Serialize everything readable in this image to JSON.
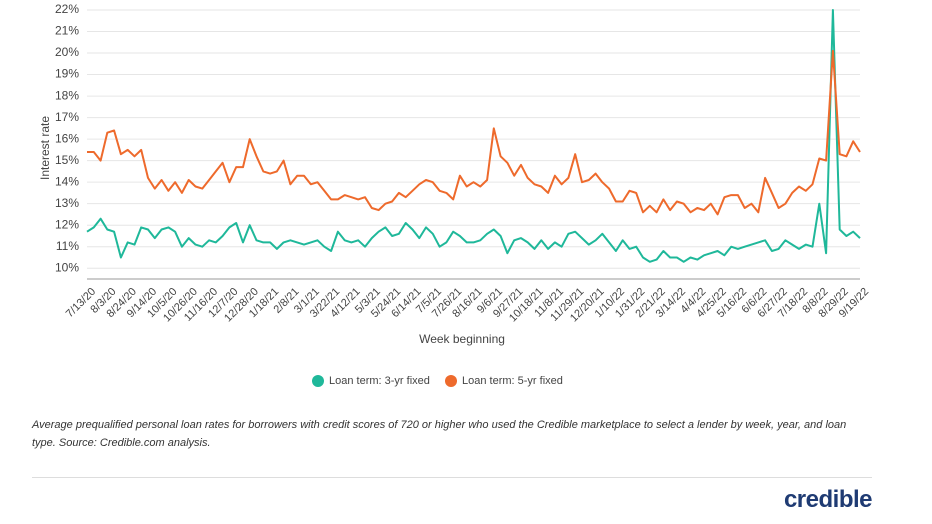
{
  "chart_data": {
    "type": "line",
    "y_label": "Interest rate",
    "x_label": "Week beginning",
    "caption": "Average prequalified personal loan rates for borrowers with credit scores of 720 or higher who used the Credible marketplace to select a lender by week, year, and loan type. Source: Credible.com analysis.",
    "logo": "credible",
    "grid": true,
    "ylim": [
      9.5,
      22
    ],
    "yticks": [
      {
        "value": 10,
        "label": "10%"
      },
      {
        "value": 11,
        "label": "11%"
      },
      {
        "value": 12,
        "label": "12%"
      },
      {
        "value": 13,
        "label": "13%"
      },
      {
        "value": 14,
        "label": "14%"
      },
      {
        "value": 15,
        "label": "15%"
      },
      {
        "value": 16,
        "label": "16%"
      },
      {
        "value": 17,
        "label": "17%"
      },
      {
        "value": 18,
        "label": "18%"
      },
      {
        "value": 19,
        "label": "19%"
      },
      {
        "value": 20,
        "label": "20%"
      },
      {
        "value": 21,
        "label": "21%"
      },
      {
        "value": 22,
        "label": "22%"
      }
    ],
    "categories": [
      "7/13/20",
      null,
      null,
      "8/3/20",
      null,
      null,
      "8/24/20",
      null,
      null,
      "9/14/20",
      null,
      null,
      "10/5/20",
      null,
      null,
      "10/26/20",
      null,
      null,
      "11/16/20",
      null,
      null,
      "12/7/20",
      null,
      null,
      "12/28/20",
      null,
      null,
      "1/18/21",
      null,
      null,
      "2/8/21",
      null,
      null,
      "3/1/21",
      null,
      null,
      "3/22/21",
      null,
      null,
      "4/12/21",
      null,
      null,
      "5/3/21",
      null,
      null,
      "5/24/21",
      null,
      null,
      "6/14/21",
      null,
      null,
      "7/5/21",
      null,
      null,
      "7/26/21",
      null,
      null,
      "8/16/21",
      null,
      null,
      "9/6/21",
      null,
      null,
      "9/27/21",
      null,
      null,
      "10/18/21",
      null,
      null,
      "11/8/21",
      null,
      null,
      "11/29/21",
      null,
      null,
      "12/20/21",
      null,
      null,
      "1/10/22",
      null,
      null,
      "1/31/22",
      null,
      null,
      "2/21/22",
      null,
      null,
      "3/14/22",
      null,
      null,
      "4/4/22",
      null,
      null,
      "4/25/22",
      null,
      null,
      "5/16/22",
      null,
      null,
      "6/6/22",
      null,
      null,
      "6/27/22",
      null,
      null,
      "7/18/22",
      null,
      null,
      "8/8/22",
      null,
      null,
      "8/29/22",
      null,
      null,
      "9/19/22"
    ],
    "series": [
      {
        "name": "Loan term: 3-yr fixed",
        "color": "#1fb89a",
        "values": [
          11.7,
          11.9,
          12.3,
          11.8,
          11.7,
          10.5,
          11.2,
          11.1,
          11.9,
          11.8,
          11.4,
          11.8,
          11.9,
          11.7,
          11.0,
          11.4,
          11.1,
          11.0,
          11.3,
          11.2,
          11.5,
          11.9,
          12.1,
          11.2,
          12.0,
          11.3,
          11.2,
          11.2,
          10.9,
          11.2,
          11.3,
          11.2,
          11.1,
          11.2,
          11.3,
          11.0,
          10.8,
          11.7,
          11.3,
          11.2,
          11.3,
          11.0,
          11.4,
          11.7,
          11.9,
          11.5,
          11.6,
          12.1,
          11.8,
          11.4,
          11.9,
          11.6,
          11.0,
          11.2,
          11.7,
          11.5,
          11.2,
          11.2,
          11.3,
          11.6,
          11.8,
          11.5,
          10.7,
          11.3,
          11.4,
          11.2,
          10.9,
          11.3,
          10.9,
          11.2,
          11.0,
          11.6,
          11.7,
          11.4,
          11.1,
          11.3,
          11.6,
          11.2,
          10.8,
          11.3,
          10.9,
          11.0,
          10.5,
          10.3,
          10.4,
          10.8,
          10.5,
          10.5,
          10.3,
          10.5,
          10.4,
          10.6,
          10.7,
          10.8,
          10.6,
          11.0,
          10.9,
          11.0,
          11.1,
          11.2,
          11.3,
          10.8,
          10.9,
          11.3,
          11.1,
          10.9,
          11.1,
          11.0,
          13.0,
          10.7,
          22.0,
          11.8,
          11.5,
          11.7,
          11.4
        ]
      },
      {
        "name": "Loan term: 5-yr fixed",
        "color": "#ee6a2c",
        "values": [
          15.4,
          15.4,
          15.0,
          16.3,
          16.4,
          15.3,
          15.5,
          15.2,
          15.5,
          14.2,
          13.7,
          14.1,
          13.6,
          14.0,
          13.5,
          14.1,
          13.8,
          13.7,
          14.1,
          14.5,
          14.9,
          14.0,
          14.7,
          14.7,
          16.0,
          15.2,
          14.5,
          14.4,
          14.5,
          15.0,
          13.9,
          14.3,
          14.3,
          13.9,
          14.0,
          13.6,
          13.2,
          13.2,
          13.4,
          13.3,
          13.2,
          13.3,
          12.8,
          12.7,
          13.0,
          13.1,
          13.5,
          13.3,
          13.6,
          13.9,
          14.1,
          14.0,
          13.6,
          13.5,
          13.2,
          14.3,
          13.8,
          14.0,
          13.8,
          14.1,
          16.5,
          15.2,
          14.9,
          14.3,
          14.8,
          14.2,
          13.9,
          13.8,
          13.5,
          14.3,
          13.9,
          14.2,
          15.3,
          14.0,
          14.1,
          14.4,
          14.0,
          13.7,
          13.1,
          13.1,
          13.6,
          13.5,
          12.6,
          12.9,
          12.6,
          13.2,
          12.7,
          13.1,
          13.0,
          12.6,
          12.8,
          12.7,
          13.0,
          12.5,
          13.3,
          13.4,
          13.4,
          12.8,
          13.0,
          12.6,
          14.2,
          13.5,
          12.8,
          13.0,
          13.5,
          13.8,
          13.6,
          13.9,
          15.1,
          15.0,
          20.1,
          15.3,
          15.2,
          15.9,
          15.4
        ]
      }
    ]
  }
}
